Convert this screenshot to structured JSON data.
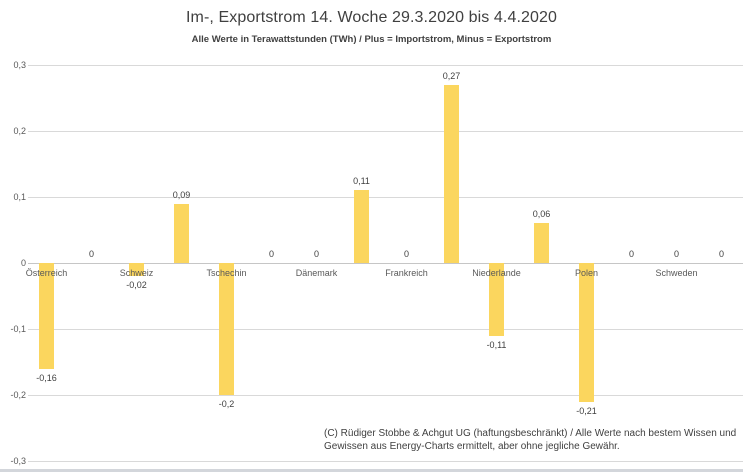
{
  "chart_data": {
    "type": "bar",
    "title": "Im-, Exportstrom 14. Woche 29.3.2020 bis 4.4.2020",
    "subtitle": "Alle Werte in Terawattstunden (TWh) / Plus = Importstrom, Minus = Exportstrom",
    "unit": "TWh",
    "bar_color": "#FBD65E",
    "grid_color": "#D9D9D9",
    "axis_color": "#C6C6C6",
    "label_color": "#595959",
    "value_color": "#404040",
    "ylim": [
      -0.3,
      0.3
    ],
    "grid": true,
    "legend": false,
    "y_axis": {
      "ticks": [
        {
          "value": 0.3,
          "label": "0,3"
        },
        {
          "value": 0.2,
          "label": "0,2"
        },
        {
          "value": 0.1,
          "label": "0,1"
        },
        {
          "value": 0,
          "label": "0"
        },
        {
          "value": -0.1,
          "label": "-0,1"
        },
        {
          "value": -0.2,
          "label": "-0,2"
        },
        {
          "value": -0.3,
          "label": "-0,3"
        }
      ]
    },
    "categories": [
      "Österreich",
      "Schweiz",
      "Tschechin",
      "Dänemark",
      "Frankreich",
      "Niederlande",
      "Polen",
      "Schweden"
    ],
    "groups": [
      {
        "category": "Österreich",
        "bars": [
          {
            "role": "export",
            "value": -0.16,
            "label": "-0,16"
          },
          {
            "role": "import",
            "value": 0,
            "label": "0"
          }
        ]
      },
      {
        "category": "Schweiz",
        "bars": [
          {
            "role": "export",
            "value": -0.02,
            "label": "-0,02"
          },
          {
            "role": "import",
            "value": 0.09,
            "label": "0,09"
          }
        ]
      },
      {
        "category": "Tschechin",
        "bars": [
          {
            "role": "export",
            "value": -0.2,
            "label": "-0,2"
          },
          {
            "role": "import",
            "value": 0,
            "label": "0"
          }
        ]
      },
      {
        "category": "Dänemark",
        "bars": [
          {
            "role": "export",
            "value": 0,
            "label": "0"
          },
          {
            "role": "import",
            "value": 0.11,
            "label": "0,11"
          }
        ]
      },
      {
        "category": "Frankreich",
        "bars": [
          {
            "role": "export",
            "value": 0,
            "label": "0"
          },
          {
            "role": "import",
            "value": 0.27,
            "label": "0,27"
          }
        ]
      },
      {
        "category": "Niederlande",
        "bars": [
          {
            "role": "export",
            "value": -0.11,
            "label": "-0,11"
          },
          {
            "role": "import",
            "value": 0.06,
            "label": "0,06"
          }
        ]
      },
      {
        "category": "Polen",
        "bars": [
          {
            "role": "export",
            "value": -0.21,
            "label": "-0,21"
          },
          {
            "role": "import",
            "value": 0,
            "label": "0"
          }
        ]
      },
      {
        "category": "Schweden",
        "bars": [
          {
            "role": "export",
            "value": 0,
            "label": "0"
          },
          {
            "role": "import",
            "value": 0,
            "label": "0"
          }
        ]
      }
    ],
    "footer": {
      "line1": "(C) Rüdiger Stobbe & Achgut UG (haftungsbeschränkt) / Alle Werte nach bestem Wissen und",
      "line2": "Gewissen aus Energy-Charts ermittelt, aber ohne jegliche Gewähr."
    }
  }
}
